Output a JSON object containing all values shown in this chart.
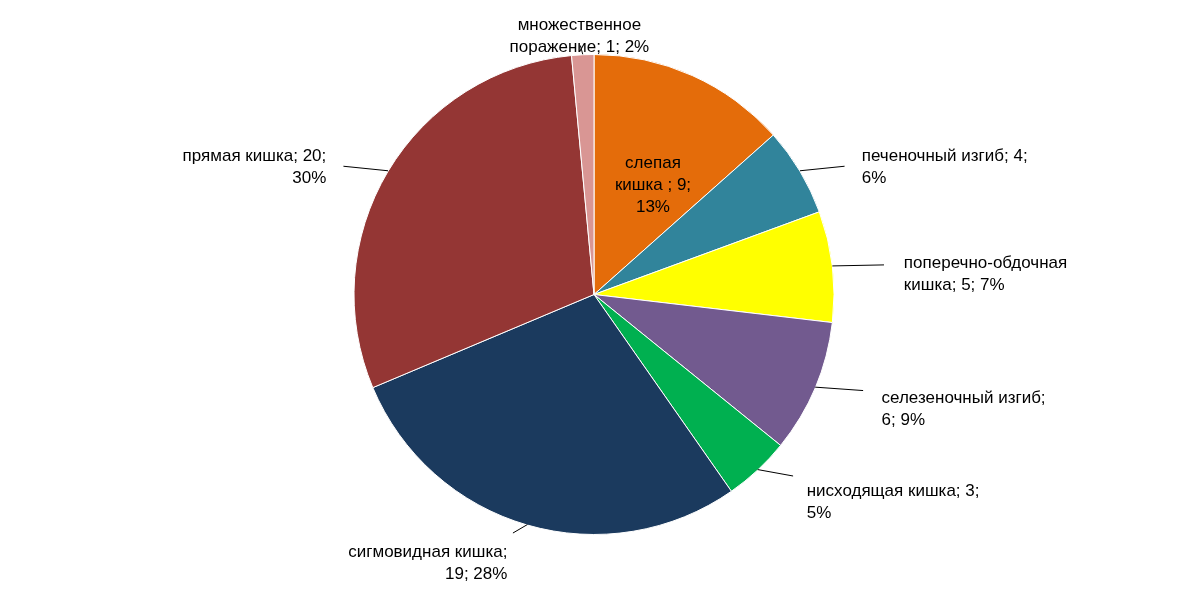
{
  "chart_data": {
    "type": "pie",
    "categories": [
      "слепая кишка ",
      "печеночный изгиб",
      "поперечно-обдочная кишка",
      "селезеночный изгиб",
      "нисходящая кишка",
      "сигмовидная кишка",
      "прямая кишка",
      "множественное поражение"
    ],
    "values": [
      9,
      4,
      5,
      6,
      3,
      19,
      20,
      1
    ],
    "colors": [
      "#e46c0a",
      "#31849b",
      "#ffff00",
      "#725a8f",
      "#00b050",
      "#1b3a5e",
      "#943634",
      "#d99694"
    ],
    "value_labels": [
      "; 9; 13%",
      "; 4; 6%",
      "; 5; 7%",
      "; 6; 9%",
      "; 3; 5%",
      "; 19; 28%",
      "; 20; 30%",
      "; 1; 2%"
    ]
  }
}
